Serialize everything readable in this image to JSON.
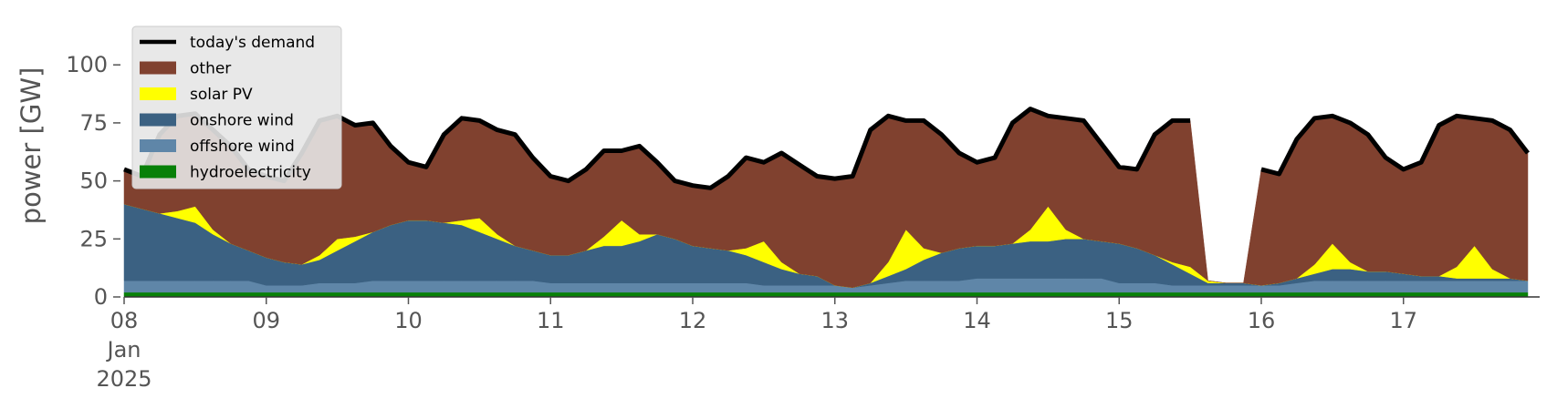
{
  "chart_data": {
    "type": "stacked_area",
    "y_label": "power [GW]",
    "x": [
      "2025-01-08T00:00",
      "2025-01-08T03:00",
      "2025-01-08T06:00",
      "2025-01-08T09:00",
      "2025-01-08T12:00",
      "2025-01-08T15:00",
      "2025-01-08T18:00",
      "2025-01-08T21:00",
      "2025-01-09T00:00",
      "2025-01-09T03:00",
      "2025-01-09T06:00",
      "2025-01-09T09:00",
      "2025-01-09T12:00",
      "2025-01-09T15:00",
      "2025-01-09T18:00",
      "2025-01-09T21:00",
      "2025-01-10T00:00",
      "2025-01-10T03:00",
      "2025-01-10T06:00",
      "2025-01-10T09:00",
      "2025-01-10T12:00",
      "2025-01-10T15:00",
      "2025-01-10T18:00",
      "2025-01-10T21:00",
      "2025-01-11T00:00",
      "2025-01-11T03:00",
      "2025-01-11T06:00",
      "2025-01-11T09:00",
      "2025-01-11T12:00",
      "2025-01-11T15:00",
      "2025-01-11T18:00",
      "2025-01-11T21:00",
      "2025-01-12T00:00",
      "2025-01-12T03:00",
      "2025-01-12T06:00",
      "2025-01-12T09:00",
      "2025-01-12T12:00",
      "2025-01-12T15:00",
      "2025-01-12T18:00",
      "2025-01-12T21:00",
      "2025-01-13T00:00",
      "2025-01-13T03:00",
      "2025-01-13T06:00",
      "2025-01-13T09:00",
      "2025-01-13T12:00",
      "2025-01-13T15:00",
      "2025-01-13T18:00",
      "2025-01-13T21:00",
      "2025-01-14T00:00",
      "2025-01-14T03:00",
      "2025-01-14T06:00",
      "2025-01-14T09:00",
      "2025-01-14T12:00",
      "2025-01-14T15:00",
      "2025-01-14T18:00",
      "2025-01-14T21:00",
      "2025-01-15T00:00",
      "2025-01-15T03:00",
      "2025-01-15T06:00",
      "2025-01-15T09:00",
      "2025-01-15T12:00",
      "2025-01-15T15:00",
      "2025-01-15T18:00",
      "2025-01-15T21:00",
      "2025-01-16T00:00",
      "2025-01-16T03:00",
      "2025-01-16T06:00",
      "2025-01-16T09:00",
      "2025-01-16T12:00",
      "2025-01-16T15:00",
      "2025-01-16T18:00",
      "2025-01-16T21:00",
      "2025-01-17T00:00",
      "2025-01-17T03:00",
      "2025-01-17T06:00",
      "2025-01-17T09:00",
      "2025-01-17T12:00",
      "2025-01-17T15:00",
      "2025-01-17T18:00",
      "2025-01-17T21:00"
    ],
    "series": [
      {
        "name": "today's demand",
        "kind": "line",
        "color": "#000000",
        "values": [
          55,
          52,
          70,
          78,
          79,
          72,
          65,
          55,
          52,
          50,
          62,
          76,
          78,
          74,
          75,
          65,
          58,
          56,
          70,
          77,
          76,
          72,
          70,
          60,
          52,
          50,
          55,
          63,
          63,
          65,
          58,
          50,
          48,
          47,
          52,
          60,
          58,
          62,
          57,
          52,
          51,
          52,
          72,
          78,
          76,
          76,
          70,
          62,
          58,
          60,
          75,
          81,
          78,
          77,
          76,
          66,
          56,
          55,
          70,
          76,
          76,
          null,
          null,
          null,
          55,
          53,
          68,
          77,
          78,
          75,
          70,
          60,
          55,
          58,
          74,
          78,
          77,
          76,
          72,
          62
        ]
      },
      {
        "name": "other",
        "kind": "area",
        "color": "#80412f",
        "values": [
          15,
          14,
          34,
          41,
          40,
          43,
          42,
          35,
          35,
          35,
          48,
          58,
          53,
          48,
          47,
          34,
          25,
          23,
          38,
          44,
          42,
          45,
          48,
          40,
          34,
          32,
          35,
          37,
          30,
          38,
          31,
          25,
          26,
          26,
          32,
          39,
          34,
          47,
          47,
          43,
          46,
          48,
          66,
          63,
          47,
          55,
          51,
          41,
          36,
          38,
          52,
          52,
          39,
          48,
          51,
          42,
          33,
          34,
          52,
          61,
          63,
          0,
          0,
          0,
          50,
          47,
          60,
          63,
          55,
          60,
          59,
          49,
          45,
          49,
          65,
          65,
          55,
          64,
          64,
          55
        ]
      },
      {
        "name": "solar PV",
        "kind": "area",
        "color": "#ffff00",
        "values": [
          0,
          0,
          0,
          3,
          7,
          2,
          0,
          0,
          0,
          0,
          0,
          2,
          5,
          2,
          0,
          0,
          0,
          0,
          0,
          2,
          6,
          2,
          0,
          0,
          0,
          0,
          0,
          4,
          11,
          3,
          0,
          0,
          0,
          0,
          0,
          3,
          9,
          3,
          0,
          0,
          0,
          0,
          0,
          6,
          17,
          5,
          0,
          0,
          0,
          0,
          0,
          5,
          15,
          4,
          0,
          0,
          0,
          0,
          0,
          1,
          3,
          1,
          0,
          0,
          0,
          0,
          0,
          4,
          11,
          3,
          0,
          0,
          0,
          0,
          0,
          5,
          14,
          4,
          0,
          0
        ]
      },
      {
        "name": "onshore wind",
        "kind": "area",
        "color": "#3b6182",
        "values": [
          33,
          31,
          29,
          27,
          25,
          20,
          16,
          13,
          12,
          10,
          9,
          10,
          14,
          18,
          21,
          24,
          26,
          26,
          25,
          24,
          21,
          18,
          15,
          13,
          12,
          12,
          14,
          16,
          16,
          18,
          21,
          19,
          16,
          15,
          14,
          12,
          10,
          7,
          5,
          4,
          0,
          0,
          1,
          3,
          5,
          9,
          12,
          14,
          14,
          14,
          15,
          16,
          16,
          17,
          17,
          16,
          17,
          15,
          12,
          9,
          5,
          1,
          1,
          1,
          0,
          1,
          2,
          3,
          5,
          5,
          4,
          4,
          3,
          2,
          2,
          1,
          1,
          1,
          1,
          0
        ]
      },
      {
        "name": "offshore wind",
        "kind": "area",
        "color": "#5f86a8",
        "values": [
          5,
          5,
          5,
          5,
          5,
          5,
          5,
          5,
          3,
          3,
          3,
          4,
          4,
          4,
          5,
          5,
          5,
          5,
          5,
          5,
          5,
          5,
          5,
          5,
          4,
          4,
          4,
          4,
          4,
          4,
          4,
          4,
          4,
          4,
          4,
          4,
          3,
          3,
          3,
          3,
          3,
          2,
          3,
          4,
          5,
          5,
          5,
          5,
          6,
          6,
          6,
          6,
          6,
          6,
          6,
          6,
          4,
          4,
          4,
          3,
          3,
          3,
          3,
          3,
          3,
          3,
          4,
          5,
          5,
          5,
          5,
          5,
          5,
          5,
          5,
          5,
          5,
          5,
          5,
          5
        ]
      },
      {
        "name": "hydroelectricity",
        "kind": "area",
        "color": "#088008",
        "values": [
          2,
          2,
          2,
          2,
          2,
          2,
          2,
          2,
          2,
          2,
          2,
          2,
          2,
          2,
          2,
          2,
          2,
          2,
          2,
          2,
          2,
          2,
          2,
          2,
          2,
          2,
          2,
          2,
          2,
          2,
          2,
          2,
          2,
          2,
          2,
          2,
          2,
          2,
          2,
          2,
          2,
          2,
          2,
          2,
          2,
          2,
          2,
          2,
          2,
          2,
          2,
          2,
          2,
          2,
          2,
          2,
          2,
          2,
          2,
          2,
          2,
          2,
          2,
          2,
          2,
          2,
          2,
          2,
          2,
          2,
          2,
          2,
          2,
          2,
          2,
          2,
          2,
          2,
          2,
          2
        ]
      }
    ],
    "xlim": [
      "2025-01-08T00:00",
      "2025-01-17T23:00"
    ],
    "xticks": [
      {
        "value": "2025-01-08T00:00",
        "label": "08\nJan\n2025"
      },
      {
        "value": "2025-01-09T00:00",
        "label": "09"
      },
      {
        "value": "2025-01-10T00:00",
        "label": "10"
      },
      {
        "value": "2025-01-11T00:00",
        "label": "11"
      },
      {
        "value": "2025-01-12T00:00",
        "label": "12"
      },
      {
        "value": "2025-01-13T00:00",
        "label": "13"
      },
      {
        "value": "2025-01-14T00:00",
        "label": "14"
      },
      {
        "value": "2025-01-15T00:00",
        "label": "15"
      },
      {
        "value": "2025-01-16T00:00",
        "label": "16"
      },
      {
        "value": "2025-01-17T00:00",
        "label": "17"
      }
    ],
    "ylim": [
      0,
      115
    ],
    "yticks": [
      0,
      25,
      50,
      75,
      100
    ],
    "legend": "upper left"
  }
}
